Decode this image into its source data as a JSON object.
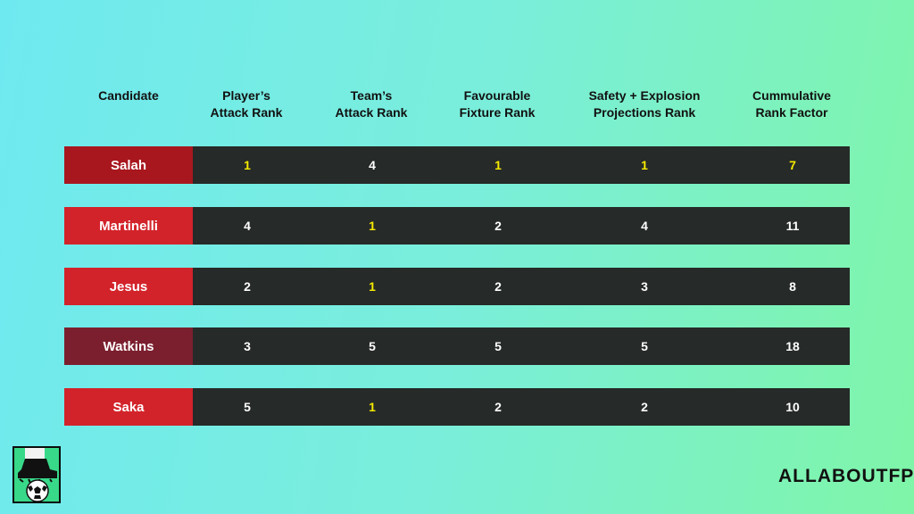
{
  "table": {
    "headers": [
      "Candidate",
      "Player’s\nAttack Rank",
      "Team’s\nAttack Rank",
      "Favourable\nFixture Rank",
      "Safety + Explosion\nProjections Rank",
      "Cummulative\nRank Factor"
    ],
    "rows": [
      {
        "name": "Salah",
        "name_color": "#a8171e",
        "values": [
          "1",
          "4",
          "1",
          "1",
          "7"
        ],
        "highlight": [
          true,
          false,
          true,
          true,
          true
        ]
      },
      {
        "name": "Martinelli",
        "name_color": "#d3232a",
        "values": [
          "4",
          "1",
          "2",
          "4",
          "11"
        ],
        "highlight": [
          false,
          true,
          false,
          false,
          false
        ]
      },
      {
        "name": "Jesus",
        "name_color": "#d3232a",
        "values": [
          "2",
          "1",
          "2",
          "3",
          "8"
        ],
        "highlight": [
          false,
          true,
          false,
          false,
          false
        ]
      },
      {
        "name": "Watkins",
        "name_color": "#7b1f2e",
        "values": [
          "3",
          "5",
          "5",
          "5",
          "18"
        ],
        "highlight": [
          false,
          false,
          false,
          false,
          false
        ]
      },
      {
        "name": "Saka",
        "name_color": "#d3232a",
        "values": [
          "5",
          "1",
          "2",
          "2",
          "10"
        ],
        "highlight": [
          false,
          true,
          false,
          false,
          false
        ]
      }
    ]
  },
  "colors": {
    "highlight": "#f6ea00",
    "cell_bg": "#262a28"
  },
  "logo": {
    "icon": "boot-and-ball-icon"
  },
  "brand": "ALLABOUTFPL"
}
